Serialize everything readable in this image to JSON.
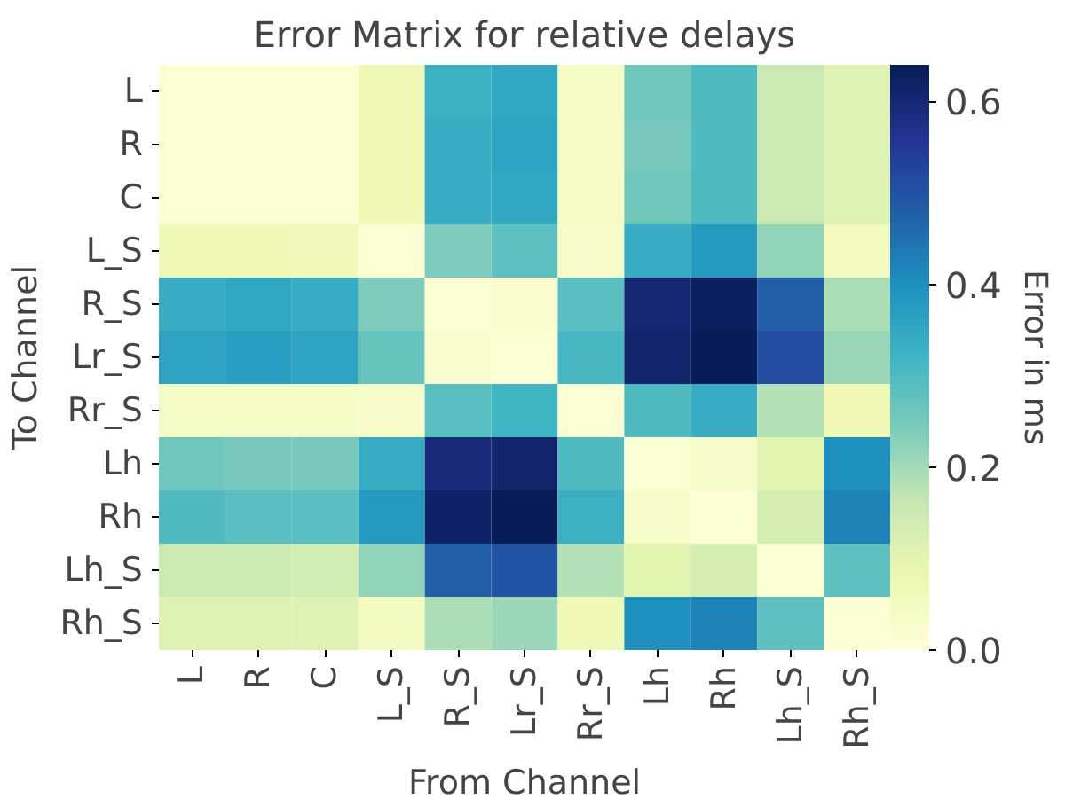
{
  "chart_data": {
    "type": "heatmap",
    "title": "Error Matrix for relative delays",
    "xlabel": "From Channel",
    "ylabel": "To Channel",
    "clabel": "Error in ms",
    "categories": [
      "L",
      "R",
      "C",
      "L_S",
      "R_S",
      "Lr_S",
      "Rr_S",
      "Lh",
      "Rh",
      "Lh_S",
      "Rh_S"
    ],
    "y_categories": [
      "L",
      "R",
      "C",
      "L_S",
      "R_S",
      "Lr_S",
      "Rr_S",
      "Lh",
      "Rh",
      "Lh_S",
      "Rh_S"
    ],
    "cells": [
      [
        0.01,
        0.01,
        0.01,
        0.07,
        0.33,
        0.35,
        0.04,
        0.26,
        0.3,
        0.15,
        0.11
      ],
      [
        0.01,
        0.01,
        0.01,
        0.07,
        0.34,
        0.36,
        0.04,
        0.25,
        0.3,
        0.15,
        0.11
      ],
      [
        0.01,
        0.01,
        0.01,
        0.07,
        0.34,
        0.35,
        0.04,
        0.26,
        0.3,
        0.15,
        0.11
      ],
      [
        0.07,
        0.07,
        0.06,
        0.01,
        0.24,
        0.28,
        0.03,
        0.34,
        0.38,
        0.22,
        0.05
      ],
      [
        0.34,
        0.35,
        0.34,
        0.24,
        0.01,
        0.02,
        0.29,
        0.6,
        0.63,
        0.48,
        0.19
      ],
      [
        0.36,
        0.37,
        0.36,
        0.27,
        0.02,
        0.01,
        0.31,
        0.61,
        0.64,
        0.51,
        0.21
      ],
      [
        0.04,
        0.04,
        0.04,
        0.03,
        0.29,
        0.32,
        0.01,
        0.3,
        0.34,
        0.18,
        0.07
      ],
      [
        0.26,
        0.25,
        0.25,
        0.34,
        0.59,
        0.61,
        0.3,
        0.01,
        0.03,
        0.1,
        0.4
      ],
      [
        0.3,
        0.29,
        0.29,
        0.38,
        0.62,
        0.64,
        0.33,
        0.03,
        0.01,
        0.13,
        0.42
      ],
      [
        0.15,
        0.15,
        0.14,
        0.22,
        0.48,
        0.5,
        0.18,
        0.1,
        0.13,
        0.01,
        0.28
      ],
      [
        0.11,
        0.11,
        0.11,
        0.05,
        0.19,
        0.21,
        0.07,
        0.4,
        0.42,
        0.28,
        0.01
      ]
    ],
    "clim": [
      0,
      0.64
    ],
    "cticks": [
      {
        "value": 0,
        "label": "0.0"
      },
      0.2,
      0.4,
      0.6
    ]
  }
}
